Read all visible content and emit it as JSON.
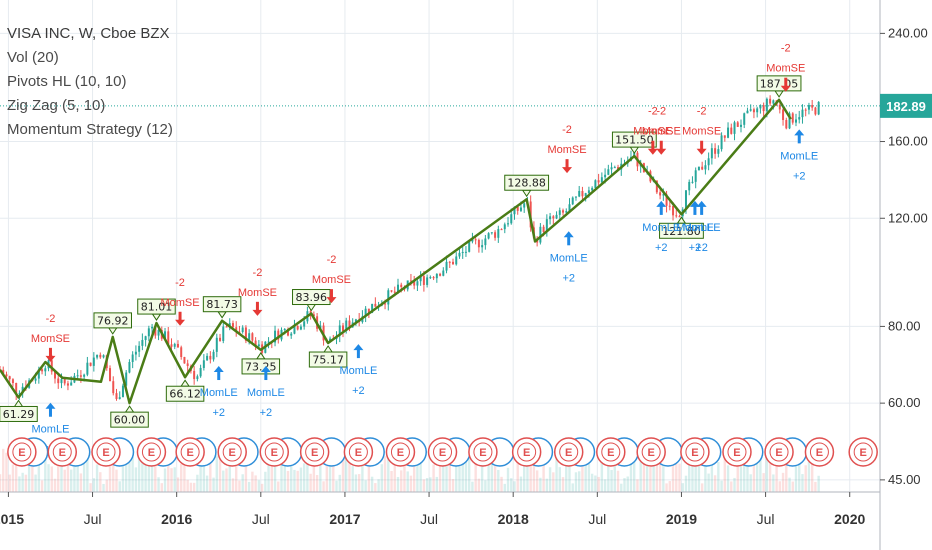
{
  "legend": {
    "title": "VISA INC, W, Cboe BZX",
    "vol": "Vol (20)",
    "pivots": "Pivots HL (10, 10)",
    "zigzag": "Zig Zag (5, 10)",
    "strategy": "Momentum Strategy (12)"
  },
  "colors": {
    "up": "#26a69a",
    "down": "#ef5350",
    "zigzag": "#4a7c16",
    "pivot_border": "#2e6b0c",
    "pivot_fill": "#f3fbe6",
    "long_signal": "#1e88e5",
    "short_signal": "#e53935",
    "last_price_bg": "#26a69a",
    "earnings": "#e05050",
    "dividend": "#2f8ed8",
    "grid": "#e6ebf0"
  },
  "chart_data": {
    "type": "candlestick",
    "symbol": "VISA INC",
    "interval": "W",
    "exchange": "Cboe BZX",
    "scale": "log",
    "ylim": [
      43,
      272
    ],
    "y_ticks": [
      "240.00",
      "160.00",
      "120.00",
      "80.00",
      "60.00",
      "45.00"
    ],
    "y_tick_values": [
      240,
      160,
      120,
      80,
      60,
      45
    ],
    "x_ticks": [
      {
        "label": "2015",
        "date": 2015.0,
        "bold": true
      },
      {
        "label": "Jul",
        "date": 2015.5,
        "bold": false
      },
      {
        "label": "2016",
        "date": 2016.0,
        "bold": true
      },
      {
        "label": "Jul",
        "date": 2016.5,
        "bold": false
      },
      {
        "label": "2017",
        "date": 2017.0,
        "bold": true
      },
      {
        "label": "Jul",
        "date": 2017.5,
        "bold": false
      },
      {
        "label": "2018",
        "date": 2018.0,
        "bold": true
      },
      {
        "label": "Jul",
        "date": 2018.5,
        "bold": false
      },
      {
        "label": "2019",
        "date": 2019.0,
        "bold": true
      },
      {
        "label": "Jul",
        "date": 2019.5,
        "bold": false
      },
      {
        "label": "2020",
        "date": 2020.0,
        "bold": true
      }
    ],
    "xlim": [
      2014.95,
      2020.18
    ],
    "last_price": {
      "label": "182.89",
      "value": 182.89
    },
    "price_path": [
      [
        2014.95,
        68
      ],
      [
        2015.05,
        63
      ],
      [
        2015.15,
        66
      ],
      [
        2015.22,
        70
      ],
      [
        2015.32,
        64
      ],
      [
        2015.42,
        67
      ],
      [
        2015.55,
        73
      ],
      [
        2015.64,
        60
      ],
      [
        2015.72,
        70
      ],
      [
        2015.85,
        80
      ],
      [
        2015.95,
        76
      ],
      [
        2016.05,
        70
      ],
      [
        2016.12,
        66
      ],
      [
        2016.2,
        72
      ],
      [
        2016.3,
        80
      ],
      [
        2016.4,
        78
      ],
      [
        2016.5,
        74
      ],
      [
        2016.6,
        78
      ],
      [
        2016.7,
        80
      ],
      [
        2016.8,
        84
      ],
      [
        2016.9,
        75
      ],
      [
        2017.0,
        80
      ],
      [
        2017.15,
        86
      ],
      [
        2017.3,
        91
      ],
      [
        2017.45,
        95
      ],
      [
        2017.6,
        100
      ],
      [
        2017.75,
        108
      ],
      [
        2017.9,
        114
      ],
      [
        2018.08,
        128
      ],
      [
        2018.12,
        110
      ],
      [
        2018.2,
        118
      ],
      [
        2018.3,
        122
      ],
      [
        2018.45,
        135
      ],
      [
        2018.6,
        145
      ],
      [
        2018.72,
        151
      ],
      [
        2018.8,
        140
      ],
      [
        2018.88,
        130
      ],
      [
        2018.98,
        122
      ],
      [
        2019.05,
        135
      ],
      [
        2019.15,
        150
      ],
      [
        2019.3,
        168
      ],
      [
        2019.45,
        180
      ],
      [
        2019.55,
        187
      ],
      [
        2019.62,
        172
      ],
      [
        2019.7,
        178
      ],
      [
        2019.78,
        180
      ],
      [
        2019.83,
        183
      ]
    ],
    "zigzag": [
      [
        2014.95,
        68
      ],
      [
        2015.06,
        61.29
      ],
      [
        2015.22,
        70
      ],
      [
        2015.32,
        66
      ],
      [
        2015.55,
        65
      ],
      [
        2015.62,
        76.92
      ],
      [
        2015.72,
        60
      ],
      [
        2015.88,
        81.01
      ],
      [
        2016.05,
        66.12
      ],
      [
        2016.27,
        81.73
      ],
      [
        2016.5,
        73.25
      ],
      [
        2016.8,
        83.96
      ],
      [
        2016.9,
        75.17
      ],
      [
        2018.08,
        128.88
      ],
      [
        2018.13,
        110
      ],
      [
        2018.72,
        151.5
      ],
      [
        2019.0,
        121.8
      ],
      [
        2019.58,
        187.05
      ],
      [
        2019.65,
        174
      ]
    ],
    "pivot_labels": [
      {
        "date": 2015.06,
        "price": 61.29,
        "label": "61.29",
        "pos": "below"
      },
      {
        "date": 2015.62,
        "price": 76.92,
        "label": "76.92",
        "pos": "above"
      },
      {
        "date": 2015.72,
        "price": 60,
        "label": "60.00",
        "pos": "below"
      },
      {
        "date": 2015.88,
        "price": 81.01,
        "label": "81.01",
        "pos": "above"
      },
      {
        "date": 2016.05,
        "price": 66.12,
        "label": "66.12",
        "pos": "below"
      },
      {
        "date": 2016.27,
        "price": 81.73,
        "label": "81.73",
        "pos": "above"
      },
      {
        "date": 2016.5,
        "price": 73.25,
        "label": "73.25",
        "pos": "below"
      },
      {
        "date": 2016.8,
        "price": 83.96,
        "label": "83.96",
        "pos": "above"
      },
      {
        "date": 2016.9,
        "price": 75.17,
        "label": "75.17",
        "pos": "below"
      },
      {
        "date": 2018.08,
        "price": 128.88,
        "label": "128.88",
        "pos": "above"
      },
      {
        "date": 2018.72,
        "price": 151.5,
        "label": "151.50",
        "pos": "above"
      },
      {
        "date": 2019.0,
        "price": 121.8,
        "label": "121.80",
        "pos": "below"
      },
      {
        "date": 2019.58,
        "price": 187.05,
        "label": "187.05",
        "pos": "above"
      }
    ],
    "signals_short": [
      {
        "date": 2015.25,
        "price": 69,
        "name": "MomSE",
        "qty": "-2"
      },
      {
        "date": 2016.02,
        "price": 79,
        "name": "MomSE",
        "qty": "-2"
      },
      {
        "date": 2016.48,
        "price": 82,
        "name": "MomSE",
        "qty": "-2"
      },
      {
        "date": 2016.92,
        "price": 86,
        "name": "MomSE",
        "qty": "-2"
      },
      {
        "date": 2018.32,
        "price": 140,
        "name": "MomSE",
        "qty": "-2"
      },
      {
        "date": 2018.83,
        "price": 150,
        "name": "MomSE",
        "qty": "-2"
      },
      {
        "date": 2018.88,
        "price": 150,
        "name": "MomSE",
        "qty": "-2"
      },
      {
        "date": 2019.12,
        "price": 150,
        "name": "MomSE",
        "qty": "-2"
      },
      {
        "date": 2019.62,
        "price": 190,
        "name": "MomSE",
        "qty": "-2"
      }
    ],
    "signals_long": [
      {
        "date": 2015.25,
        "price": 61,
        "name": "MomLE",
        "qty": "+2"
      },
      {
        "date": 2016.25,
        "price": 70,
        "name": "MomLE",
        "qty": "+2"
      },
      {
        "date": 2016.53,
        "price": 70,
        "name": "MomLE",
        "qty": "+2"
      },
      {
        "date": 2017.08,
        "price": 76,
        "name": "MomLE",
        "qty": "+2"
      },
      {
        "date": 2018.33,
        "price": 116,
        "name": "MomLE",
        "qty": "+2"
      },
      {
        "date": 2018.88,
        "price": 130,
        "name": "MomLE",
        "qty": "+2"
      },
      {
        "date": 2019.08,
        "price": 130,
        "name": "MomLE",
        "qty": "+2"
      },
      {
        "date": 2019.12,
        "price": 130,
        "name": "MomLE",
        "qty": "+2"
      },
      {
        "date": 2019.7,
        "price": 170,
        "name": "MomLE",
        "qty": "+2"
      }
    ],
    "earnings_marker": "E",
    "earnings_dates": [
      2015.08,
      2015.32,
      2015.58,
      2015.85,
      2016.08,
      2016.33,
      2016.58,
      2016.82,
      2017.08,
      2017.33,
      2017.58,
      2017.82,
      2018.08,
      2018.33,
      2018.58,
      2018.82,
      2019.08,
      2019.33,
      2019.58,
      2019.82,
      2020.08
    ],
    "dividend_dates": [
      2015.15,
      2015.4,
      2015.66,
      2015.92,
      2016.15,
      2016.4,
      2016.66,
      2016.92,
      2017.15,
      2017.4,
      2017.66,
      2017.92,
      2018.15,
      2018.4,
      2018.66,
      2018.92,
      2019.15,
      2019.4,
      2019.66
    ]
  }
}
